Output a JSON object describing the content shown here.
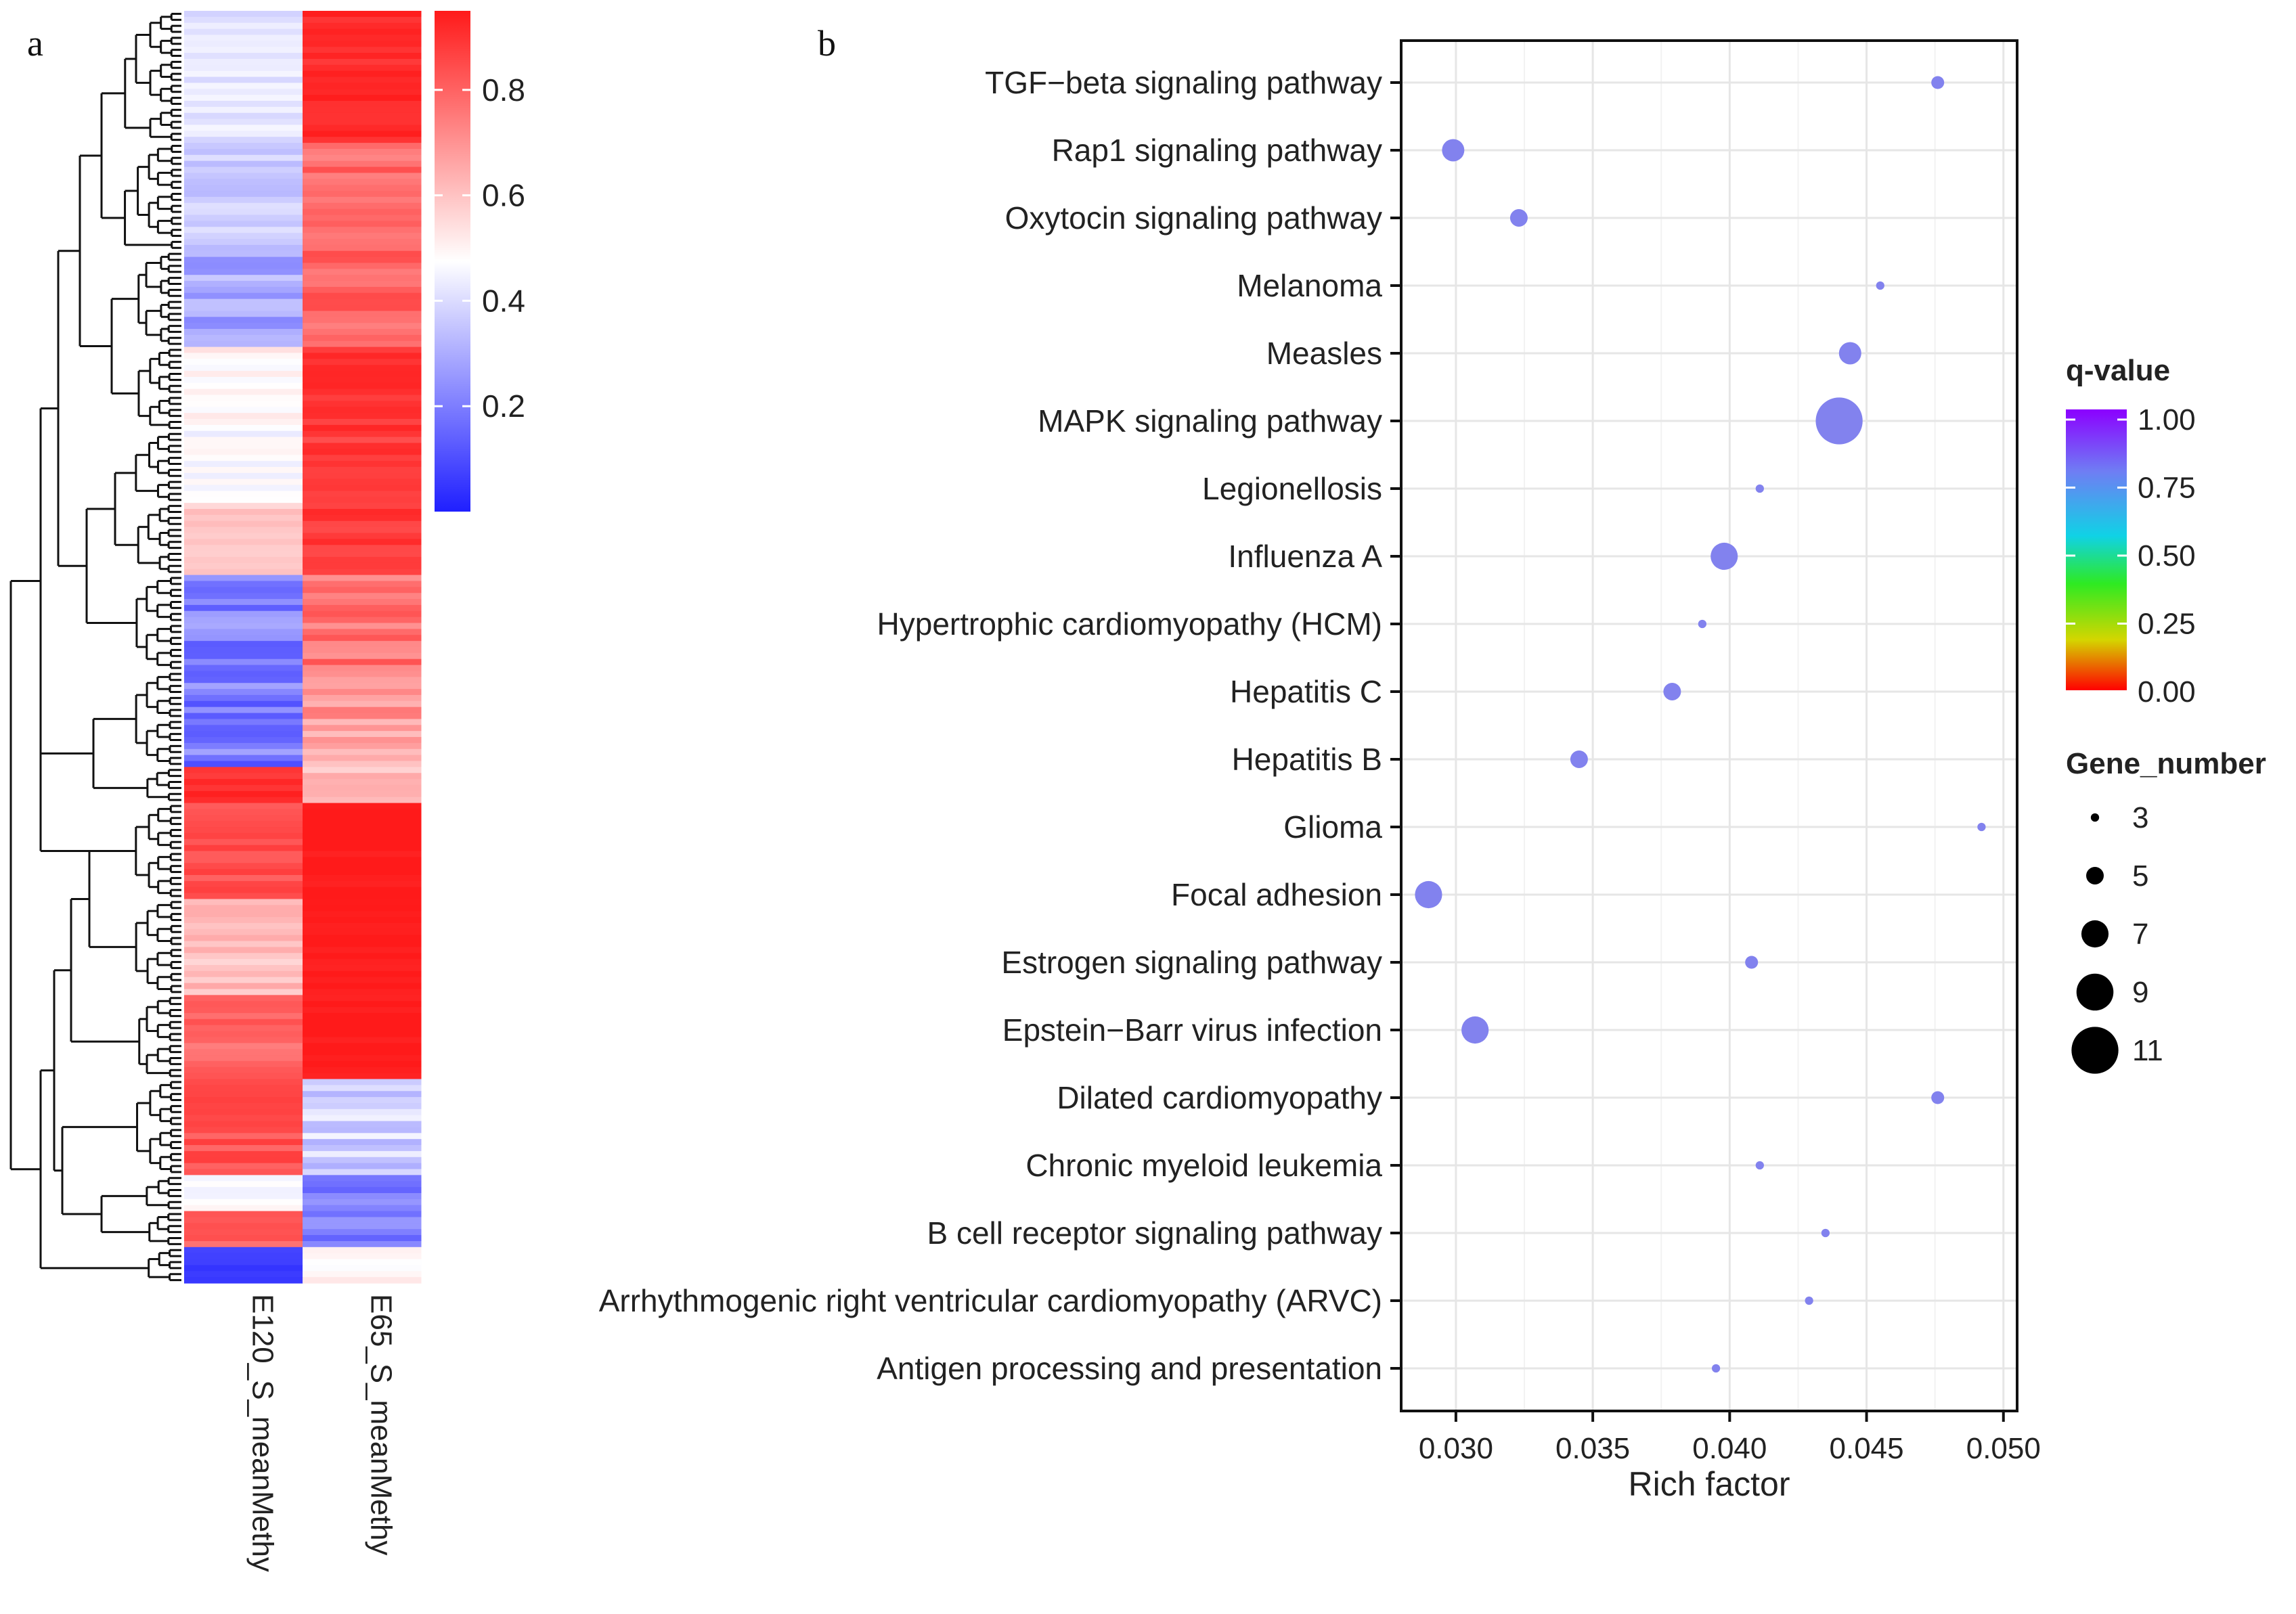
{
  "panels": {
    "a": "a",
    "b": "b"
  },
  "chart_data": [
    {
      "type": "heatmap",
      "panel": "a",
      "columns": [
        "E120_S_meanMethy",
        "E65_S_meanMethy"
      ],
      "colorbar": {
        "ticks": [
          0.2,
          0.4,
          0.6,
          0.8
        ],
        "range": [
          0,
          0.95
        ],
        "low": "#1f1fff",
        "mid": "#ffffff",
        "high": "#ff1a1a"
      },
      "row_clusters": [
        {
          "rows": 22,
          "col1": [
            0.38,
            0.46
          ],
          "col2": [
            0.88,
            0.95
          ]
        },
        {
          "rows": 18,
          "col1": [
            0.28,
            0.42
          ],
          "col2": [
            0.72,
            0.85
          ]
        },
        {
          "rows": 16,
          "col1": [
            0.22,
            0.36
          ],
          "col2": [
            0.74,
            0.86
          ]
        },
        {
          "rows": 14,
          "col1": [
            0.46,
            0.55
          ],
          "col2": [
            0.86,
            0.93
          ]
        },
        {
          "rows": 12,
          "col1": [
            0.42,
            0.5
          ],
          "col2": [
            0.84,
            0.92
          ]
        },
        {
          "rows": 12,
          "col1": [
            0.54,
            0.62
          ],
          "col2": [
            0.84,
            0.92
          ]
        },
        {
          "rows": 16,
          "col1": [
            0.12,
            0.3
          ],
          "col2": [
            0.7,
            0.84
          ]
        },
        {
          "rows": 16,
          "col1": [
            0.1,
            0.28
          ],
          "col2": [
            0.6,
            0.76
          ]
        },
        {
          "rows": 6,
          "col1": [
            0.86,
            0.94
          ],
          "col2": [
            0.56,
            0.66
          ]
        },
        {
          "rows": 16,
          "col1": [
            0.78,
            0.88
          ],
          "col2": [
            0.93,
            0.97
          ]
        },
        {
          "rows": 16,
          "col1": [
            0.56,
            0.66
          ],
          "col2": [
            0.93,
            0.97
          ]
        },
        {
          "rows": 14,
          "col1": [
            0.74,
            0.84
          ],
          "col2": [
            0.93,
            0.97
          ]
        },
        {
          "rows": 16,
          "col1": [
            0.78,
            0.88
          ],
          "col2": [
            0.3,
            0.46
          ]
        },
        {
          "rows": 6,
          "col1": [
            0.44,
            0.52
          ],
          "col2": [
            0.14,
            0.28
          ]
        },
        {
          "rows": 6,
          "col1": [
            0.76,
            0.86
          ],
          "col2": [
            0.12,
            0.26
          ]
        },
        {
          "rows": 6,
          "col1": [
            0.04,
            0.1
          ],
          "col2": [
            0.46,
            0.56
          ]
        }
      ]
    },
    {
      "type": "scatter",
      "panel": "b",
      "xlabel": "Rich factor",
      "xlim": [
        0.028,
        0.0505
      ],
      "xticks": [
        0.03,
        0.035,
        0.04,
        0.045,
        0.05
      ],
      "xtick_labels": [
        "0.030",
        "0.035",
        "0.040",
        "0.045",
        "0.050"
      ],
      "categories": [
        "TGF−beta signaling pathway",
        "Rap1 signaling pathway",
        "Oxytocin signaling pathway",
        "Melanoma",
        "Measles",
        "MAPK signaling pathway",
        "Legionellosis",
        "Influenza A",
        "Hypertrophic cardiomyopathy (HCM)",
        "Hepatitis C",
        "Hepatitis B",
        "Glioma",
        "Focal adhesion",
        "Estrogen signaling pathway",
        "Epstein−Barr virus infection",
        "Dilated cardiomyopathy",
        "Chronic myeloid leukemia",
        "B cell receptor signaling pathway",
        "Arrhythmogenic right ventricular cardiomyopathy (ARVC)",
        "Antigen processing and presentation"
      ],
      "rich_factor": [
        0.0476,
        0.0299,
        0.0323,
        0.0455,
        0.0444,
        0.044,
        0.0411,
        0.0398,
        0.039,
        0.0379,
        0.0345,
        0.0492,
        0.029,
        0.0408,
        0.0307,
        0.0476,
        0.0411,
        0.0435,
        0.0429,
        0.0395
      ],
      "gene_number": [
        4,
        6,
        5,
        3,
        6,
        11,
        3,
        7,
        3,
        5,
        5,
        3,
        7,
        4,
        7,
        4,
        3,
        3,
        3,
        3
      ],
      "q_value": [
        1.0,
        1.0,
        1.0,
        1.0,
        1.0,
        1.0,
        1.0,
        1.0,
        1.0,
        1.0,
        1.0,
        1.0,
        1.0,
        1.0,
        1.0,
        1.0,
        1.0,
        1.0,
        1.0,
        1.0
      ],
      "point_color": "#8282ee",
      "legend_color": {
        "title": "q-value",
        "ticks": [
          1.0,
          0.75,
          0.5,
          0.25,
          0.0
        ],
        "tick_labels": [
          "1.00",
          "0.75",
          "0.50",
          "0.25",
          "0.00"
        ],
        "stops": [
          "#8b00ff",
          "#6f7df4",
          "#10d2e6",
          "#2eea22",
          "#d4d600",
          "#ff0000"
        ]
      },
      "legend_size": {
        "title": "Gene_number",
        "values": [
          3,
          5,
          7,
          9,
          11
        ],
        "labels": [
          "3",
          "5",
          "7",
          "9",
          "11"
        ]
      }
    }
  ]
}
